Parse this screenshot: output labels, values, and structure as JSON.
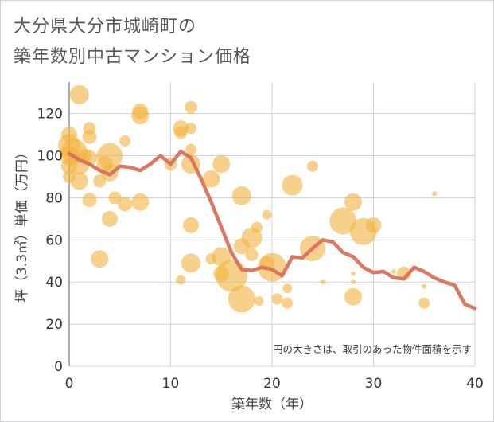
{
  "title_line1": "大分県大分市城崎町の",
  "title_line2": "築年数別中古マンション価格",
  "note": "円の大きさは、取引のあった物件面積を示す",
  "colors": {
    "bubble": "#f2b33d",
    "line": "#d9705a",
    "grid": "#c9d4de",
    "plot_bg": "#ffffff"
  },
  "chart_data": {
    "type": "scatter",
    "xlabel": "築年数（年）",
    "ylabel": "坪（3.3㎡）単価（万円）",
    "xlim": [
      0,
      40
    ],
    "ylim": [
      0,
      135
    ],
    "x_ticks": [
      0,
      10,
      20,
      30,
      40
    ],
    "y_ticks": [
      0,
      20,
      40,
      60,
      80,
      100,
      120
    ],
    "grid": true,
    "legend": "none",
    "bubbles": [
      {
        "x": 0,
        "y": 110,
        "s": 10
      },
      {
        "x": 0,
        "y": 105,
        "s": 14
      },
      {
        "x": 0,
        "y": 100,
        "s": 12
      },
      {
        "x": 0,
        "y": 95,
        "s": 10
      },
      {
        "x": 0,
        "y": 90,
        "s": 8
      },
      {
        "x": 0.5,
        "y": 102,
        "s": 16
      },
      {
        "x": 1,
        "y": 129,
        "s": 12
      },
      {
        "x": 1,
        "y": 96,
        "s": 13
      },
      {
        "x": 1,
        "y": 88,
        "s": 11
      },
      {
        "x": 1.5,
        "y": 100,
        "s": 9
      },
      {
        "x": 2,
        "y": 113,
        "s": 8
      },
      {
        "x": 2,
        "y": 109,
        "s": 9
      },
      {
        "x": 2,
        "y": 79,
        "s": 9
      },
      {
        "x": 2,
        "y": 99,
        "s": 10
      },
      {
        "x": 3,
        "y": 51,
        "s": 11
      },
      {
        "x": 3,
        "y": 88,
        "s": 8
      },
      {
        "x": 3.5,
        "y": 96,
        "s": 10
      },
      {
        "x": 4,
        "y": 100,
        "s": 16
      },
      {
        "x": 4,
        "y": 92,
        "s": 11
      },
      {
        "x": 4,
        "y": 70,
        "s": 10
      },
      {
        "x": 4.5,
        "y": 80,
        "s": 8
      },
      {
        "x": 5.5,
        "y": 107,
        "s": 7
      },
      {
        "x": 5.5,
        "y": 77,
        "s": 9
      },
      {
        "x": 7,
        "y": 121,
        "s": 10
      },
      {
        "x": 7,
        "y": 119,
        "s": 11
      },
      {
        "x": 7,
        "y": 78,
        "s": 11
      },
      {
        "x": 10,
        "y": 96,
        "s": 8
      },
      {
        "x": 11,
        "y": 113,
        "s": 10
      },
      {
        "x": 11,
        "y": 111,
        "s": 8
      },
      {
        "x": 11,
        "y": 41,
        "s": 6
      },
      {
        "x": 12,
        "y": 123,
        "s": 8
      },
      {
        "x": 12,
        "y": 113,
        "s": 7
      },
      {
        "x": 12,
        "y": 103,
        "s": 7
      },
      {
        "x": 12,
        "y": 67,
        "s": 10
      },
      {
        "x": 12,
        "y": 49,
        "s": 12
      },
      {
        "x": 12,
        "y": 96,
        "s": 12
      },
      {
        "x": 14,
        "y": 89,
        "s": 11
      },
      {
        "x": 14,
        "y": 51,
        "s": 7
      },
      {
        "x": 15,
        "y": 96,
        "s": 11
      },
      {
        "x": 15,
        "y": 52,
        "s": 12
      },
      {
        "x": 15,
        "y": 44,
        "s": 10
      },
      {
        "x": 16,
        "y": 43,
        "s": 20
      },
      {
        "x": 17,
        "y": 81,
        "s": 12
      },
      {
        "x": 17,
        "y": 57,
        "s": 10
      },
      {
        "x": 17,
        "y": 32,
        "s": 17
      },
      {
        "x": 18,
        "y": 61,
        "s": 13
      },
      {
        "x": 18,
        "y": 53,
        "s": 8
      },
      {
        "x": 18.5,
        "y": 66,
        "s": 7
      },
      {
        "x": 18.7,
        "y": 31,
        "s": 6
      },
      {
        "x": 19.5,
        "y": 72,
        "s": 6
      },
      {
        "x": 19.5,
        "y": 49,
        "s": 9
      },
      {
        "x": 20,
        "y": 47,
        "s": 18
      },
      {
        "x": 20.5,
        "y": 32,
        "s": 7
      },
      {
        "x": 21.5,
        "y": 30,
        "s": 7
      },
      {
        "x": 21.5,
        "y": 37,
        "s": 6
      },
      {
        "x": 22,
        "y": 86,
        "s": 13
      },
      {
        "x": 24,
        "y": 95,
        "s": 7
      },
      {
        "x": 24,
        "y": 56,
        "s": 16
      },
      {
        "x": 25,
        "y": 40,
        "s": 3
      },
      {
        "x": 27,
        "y": 69,
        "s": 17
      },
      {
        "x": 28,
        "y": 78,
        "s": 11
      },
      {
        "x": 28,
        "y": 44,
        "s": 3
      },
      {
        "x": 28,
        "y": 40,
        "s": 3
      },
      {
        "x": 28,
        "y": 33,
        "s": 11
      },
      {
        "x": 29,
        "y": 64,
        "s": 17
      },
      {
        "x": 30,
        "y": 67,
        "s": 10
      },
      {
        "x": 32,
        "y": 45,
        "s": 3
      },
      {
        "x": 33,
        "y": 44,
        "s": 9
      },
      {
        "x": 35,
        "y": 38,
        "s": 3
      },
      {
        "x": 35,
        "y": 30,
        "s": 7
      },
      {
        "x": 36,
        "y": 82,
        "s": 3
      }
    ],
    "line": {
      "x": [
        0,
        1,
        2,
        3,
        4,
        5,
        6,
        7,
        8,
        9,
        10,
        11,
        12,
        13,
        14,
        15,
        16,
        17,
        18,
        19,
        20,
        21,
        22,
        23,
        24,
        25,
        26,
        27,
        28,
        29,
        30,
        31,
        32,
        33,
        34,
        35,
        36,
        37,
        38,
        39,
        40
      ],
      "y": [
        101,
        98,
        96,
        93,
        91,
        95,
        94.5,
        93,
        96,
        100,
        96,
        102,
        99,
        89,
        78,
        66,
        54,
        46,
        45.5,
        47,
        46,
        43,
        52,
        51.5,
        56,
        60,
        59,
        54,
        52,
        47,
        44.5,
        45,
        42,
        41.5,
        47,
        45,
        42,
        40,
        38.5,
        29.5,
        27.5
      ]
    }
  }
}
